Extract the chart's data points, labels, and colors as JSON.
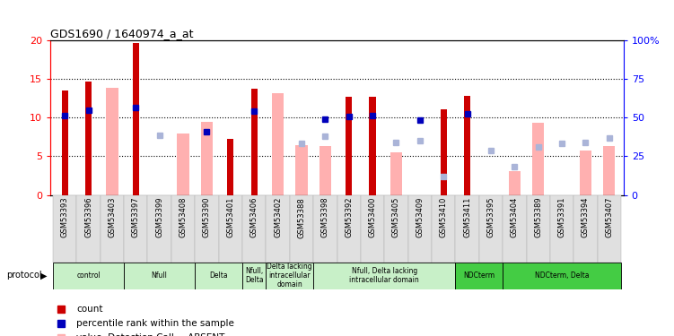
{
  "title": "GDS1690 / 1640974_a_at",
  "samples": [
    "GSM53393",
    "GSM53396",
    "GSM53403",
    "GSM53397",
    "GSM53399",
    "GSM53408",
    "GSM53390",
    "GSM53401",
    "GSM53406",
    "GSM53402",
    "GSM53388",
    "GSM53398",
    "GSM53392",
    "GSM53400",
    "GSM53405",
    "GSM53409",
    "GSM53410",
    "GSM53411",
    "GSM53395",
    "GSM53404",
    "GSM53389",
    "GSM53391",
    "GSM53394",
    "GSM53407"
  ],
  "count": [
    13.5,
    14.7,
    null,
    19.7,
    null,
    null,
    null,
    7.3,
    13.7,
    null,
    null,
    null,
    12.7,
    12.7,
    null,
    null,
    11.1,
    12.8,
    null,
    null,
    null,
    null,
    null,
    null
  ],
  "percentile": [
    10.3,
    11.0,
    null,
    11.3,
    null,
    null,
    8.2,
    null,
    10.8,
    null,
    null,
    9.8,
    10.1,
    10.3,
    null,
    9.7,
    null,
    10.5,
    null,
    null,
    null,
    null,
    null,
    null
  ],
  "value_absent": [
    null,
    null,
    13.8,
    null,
    null,
    8.0,
    9.5,
    null,
    null,
    13.2,
    6.4,
    6.3,
    null,
    null,
    5.5,
    null,
    null,
    null,
    null,
    3.1,
    9.3,
    null,
    5.7,
    6.3
  ],
  "rank_absent": [
    null,
    null,
    null,
    null,
    7.7,
    null,
    null,
    null,
    null,
    null,
    6.7,
    7.6,
    null,
    null,
    6.8,
    7.0,
    2.4,
    null,
    5.7,
    3.6,
    6.2,
    6.7,
    6.8,
    7.4
  ],
  "groups": [
    {
      "label": "control",
      "start": 0,
      "end": 3,
      "color": "#c8f0c8"
    },
    {
      "label": "Nfull",
      "start": 3,
      "end": 6,
      "color": "#c8f0c8"
    },
    {
      "label": "Delta",
      "start": 6,
      "end": 8,
      "color": "#c8f0c8"
    },
    {
      "label": "Nfull,\nDelta",
      "start": 8,
      "end": 9,
      "color": "#c8f0c8"
    },
    {
      "label": "Delta lacking\nintracellular\ndomain",
      "start": 9,
      "end": 11,
      "color": "#c8f0c8"
    },
    {
      "label": "Nfull, Delta lacking\nintracellular domain",
      "start": 11,
      "end": 17,
      "color": "#c8f0c8"
    },
    {
      "label": "NDCterm",
      "start": 17,
      "end": 19,
      "color": "#44cc44"
    },
    {
      "label": "NDCterm, Delta",
      "start": 19,
      "end": 24,
      "color": "#44cc44"
    }
  ],
  "ylim": [
    0,
    20
  ],
  "yticks": [
    0,
    5,
    10,
    15,
    20
  ],
  "color_count": "#cc0000",
  "color_percentile": "#0000bb",
  "color_value_absent": "#ffb0b0",
  "color_rank_absent": "#aab4d8",
  "bar_width": 0.5,
  "fig_width": 7.51,
  "fig_height": 3.75,
  "dpi": 100
}
